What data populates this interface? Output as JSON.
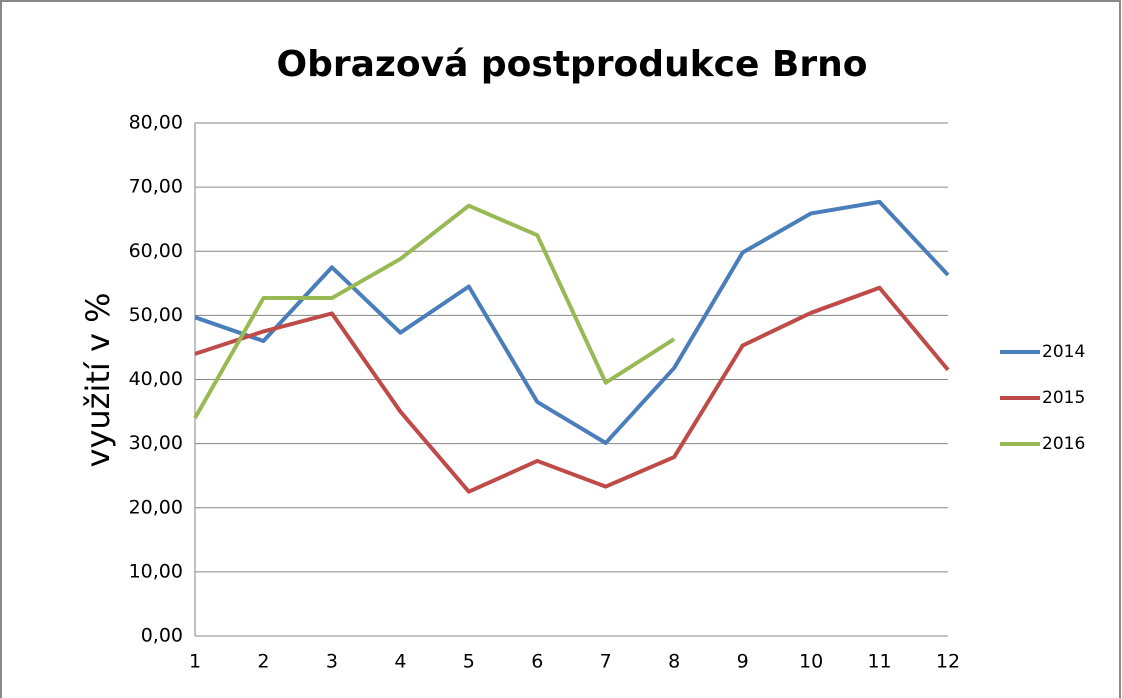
{
  "chart_data": {
    "type": "line",
    "title": "Obrazová postprodukce Brno",
    "y_label": "využití v %",
    "categories": [
      "1",
      "2",
      "3",
      "4",
      "5",
      "6",
      "7",
      "8",
      "9",
      "10",
      "11",
      "12"
    ],
    "series": [
      {
        "name": "2014",
        "color": "#4a7ebb",
        "values": [
          49.7,
          46.0,
          57.5,
          47.3,
          54.5,
          36.5,
          30.1,
          41.8,
          59.8,
          65.9,
          67.7,
          56.3
        ]
      },
      {
        "name": "2015",
        "color": "#be4b48",
        "values": [
          44.0,
          47.5,
          50.3,
          35.0,
          22.5,
          27.3,
          23.3,
          27.9,
          45.3,
          50.4,
          54.3,
          41.5
        ]
      },
      {
        "name": "2016",
        "color": "#98b954",
        "values": [
          34.0,
          52.7,
          52.7,
          58.8,
          67.1,
          62.5,
          39.5,
          46.3,
          null,
          null,
          null,
          null
        ]
      }
    ],
    "ylim": [
      0,
      80
    ],
    "yticks": [
      {
        "value": 0,
        "label": "0,00"
      },
      {
        "value": 10,
        "label": "10,00"
      },
      {
        "value": 20,
        "label": "20,00"
      },
      {
        "value": 30,
        "label": "30,00"
      },
      {
        "value": 40,
        "label": "40,00"
      },
      {
        "value": 50,
        "label": "50,00"
      },
      {
        "value": 60,
        "label": "60,00"
      },
      {
        "value": 70,
        "label": "70,00"
      },
      {
        "value": 80,
        "label": "80,00"
      }
    ],
    "grid": true,
    "legend": "right"
  }
}
